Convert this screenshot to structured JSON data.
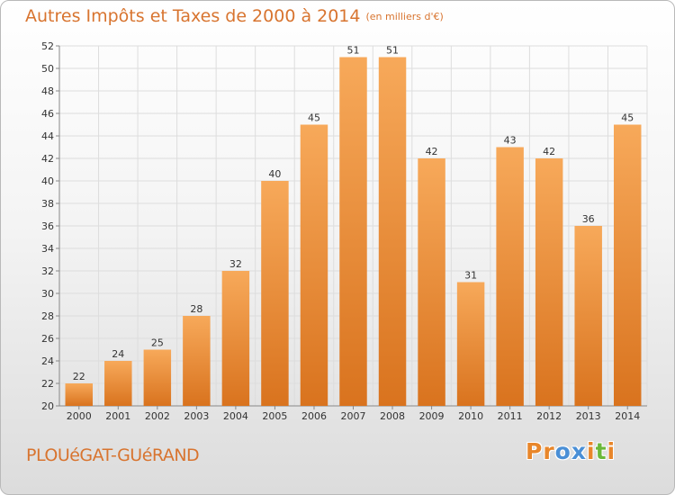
{
  "header": {
    "title": "Autres Impôts et Taxes de 2000 à 2014",
    "unit": "(en milliers d'€)"
  },
  "footer": {
    "place": "PLOUéGAT-GUéRAND",
    "logo_letters": [
      "P",
      "r",
      "o",
      "x",
      "i",
      "t",
      "i"
    ]
  },
  "colors": {
    "bar_light": "#f7a95a",
    "bar_dark": "#d9731e",
    "title": "#d8742f",
    "grid": "#dddddd",
    "axis": "#888888",
    "logo": [
      "#e8862a",
      "#e8862a",
      "#4a8fd6",
      "#4a8fd6",
      "#e8862a",
      "#6bb83a",
      "#e8862a"
    ]
  },
  "chart_data": {
    "type": "bar",
    "categories": [
      "2000",
      "2001",
      "2002",
      "2003",
      "2004",
      "2005",
      "2006",
      "2007",
      "2008",
      "2009",
      "2010",
      "2011",
      "2012",
      "2013",
      "2014"
    ],
    "values": [
      22,
      24,
      25,
      28,
      32,
      40,
      45,
      51,
      51,
      42,
      31,
      43,
      42,
      36,
      45
    ],
    "ylim": [
      20,
      52
    ],
    "yticks": [
      20,
      22,
      24,
      26,
      28,
      30,
      32,
      34,
      36,
      38,
      40,
      42,
      44,
      46,
      48,
      50,
      52
    ],
    "grid": true,
    "legend": "none"
  }
}
